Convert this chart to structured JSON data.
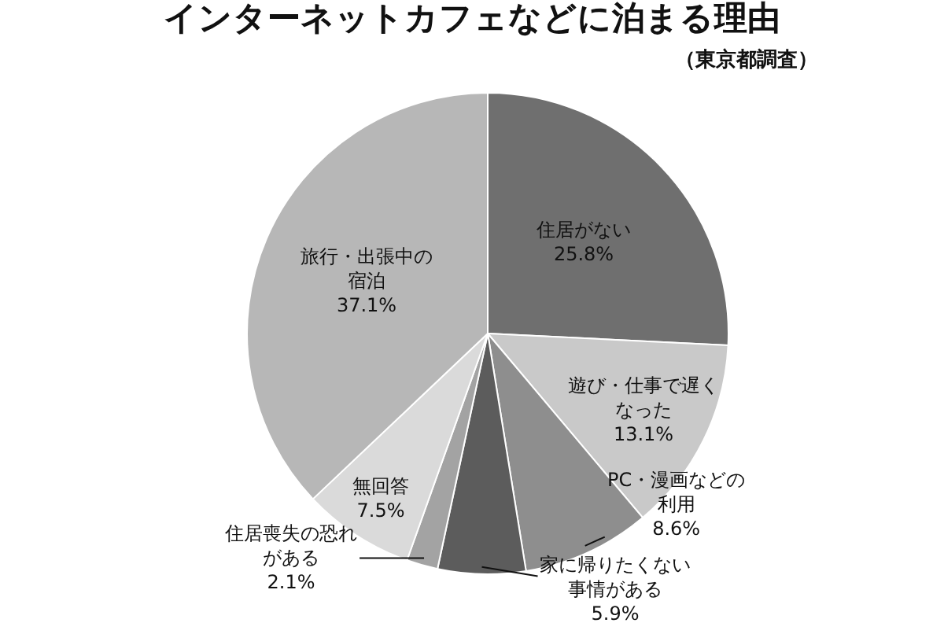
{
  "chart_data": {
    "type": "pie",
    "title": "インターネットカフェなどに泊まる理由",
    "subtitle": "（東京都調査）",
    "categories": [
      "住居がない",
      "遊び・仕事で遅くなった",
      "PC・漫画などの利用",
      "家に帰りたくない事情がある",
      "住居喪失の恐れがある",
      "無回答",
      "旅行・出張中の宿泊"
    ],
    "values": [
      25.8,
      13.1,
      8.6,
      5.9,
      2.1,
      7.5,
      37.1
    ],
    "value_labels": [
      "25.8%",
      "13.1%",
      "8.6%",
      "5.9%",
      "2.1%",
      "7.5%",
      "37.1%"
    ],
    "colors": [
      "#6f6f6f",
      "#c9c9c9",
      "#8e8e8e",
      "#5c5c5c",
      "#a3a3a3",
      "#dadada",
      "#b7b7b7"
    ]
  }
}
